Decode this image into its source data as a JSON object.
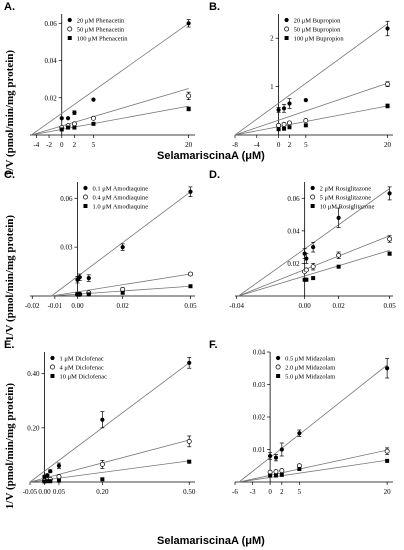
{
  "figure": {
    "ylabel": "1/V (pmol/min/mg protein)",
    "xlabel": "SelamariscinaA (μM)"
  },
  "chart_data": [
    {
      "type": "line",
      "panel": "A.",
      "series": [
        {
          "name": "20 μM Phenacetin",
          "marker": "filled-circle",
          "x": [
            0,
            1,
            2,
            5,
            20
          ],
          "y": [
            0.009,
            0.009,
            0.012,
            0.019,
            0.06
          ],
          "err": [
            0,
            0,
            0.001,
            0,
            0.002
          ]
        },
        {
          "name": "50 μM Phenacetin",
          "marker": "open-circle",
          "x": [
            0,
            1,
            2,
            5,
            20
          ],
          "y": [
            0.004,
            0.005,
            0.006,
            0.009,
            0.021
          ],
          "err": [
            0,
            0,
            0,
            0,
            0.002
          ]
        },
        {
          "name": "100 μM Phenacetin",
          "marker": "filled-square",
          "x": [
            0,
            1,
            2,
            5,
            20
          ],
          "y": [
            0.003,
            0.004,
            0.004,
            0.006,
            0.014
          ],
          "err": [
            0,
            0,
            0,
            0,
            0.001
          ]
        }
      ],
      "lines": [
        [
          -4.8,
          0.0,
          20,
          0.06
        ],
        [
          -4.8,
          0.0,
          20,
          0.025
        ],
        [
          -4.8,
          0.0,
          20,
          0.0155
        ]
      ],
      "xticks": [
        -4,
        -2,
        0,
        2,
        5,
        20
      ],
      "xtick_labels": [
        "-4",
        "-2",
        "0",
        "2",
        "5",
        "20"
      ],
      "yticks": [
        0.02,
        0.04,
        0.06
      ],
      "ytick_labels": [
        "0.02",
        "0.04",
        "0.06"
      ],
      "xlim": [
        -5,
        21
      ],
      "ylim": [
        0,
        0.065
      ]
    },
    {
      "type": "line",
      "panel": "B.",
      "series": [
        {
          "name": "20 μM Bupropion",
          "marker": "filled-circle",
          "x": [
            0,
            1,
            2,
            5,
            20
          ],
          "y": [
            0.52,
            0.55,
            0.65,
            0.72,
            2.2
          ],
          "err": [
            0.05,
            0.08,
            0.1,
            0,
            0.15
          ]
        },
        {
          "name": "50 μM Bupropion",
          "marker": "open-circle",
          "x": [
            0,
            1,
            2,
            5,
            20
          ],
          "y": [
            0.2,
            0.22,
            0.25,
            0.3,
            1.05
          ],
          "err": [
            0,
            0,
            0,
            0,
            0.05
          ]
        },
        {
          "name": "100 μM Bupropion",
          "marker": "filled-square",
          "x": [
            0,
            1,
            2,
            5,
            20
          ],
          "y": [
            0.12,
            0.13,
            0.16,
            0.2,
            0.6
          ],
          "err": [
            0,
            0,
            0,
            0,
            0.04
          ]
        }
      ],
      "lines": [
        [
          -8,
          0.0,
          20,
          2.3
        ],
        [
          -8,
          0.0,
          20,
          1.07
        ],
        [
          -8,
          0.0,
          20,
          0.6
        ]
      ],
      "xticks": [
        -8,
        -4,
        0,
        2,
        5,
        20
      ],
      "xtick_labels": [
        "-8",
        "-4",
        "0",
        "2",
        "5",
        "20"
      ],
      "yticks": [
        1,
        2
      ],
      "ytick_labels": [
        "1",
        "2"
      ],
      "xlim": [
        -8,
        21
      ],
      "ylim": [
        0,
        2.5
      ]
    },
    {
      "type": "line",
      "panel": "C.",
      "series": [
        {
          "name": "0.1 μM Amodiaquine",
          "marker": "filled-circle",
          "x": [
            0,
            0.001,
            0.005,
            0.02,
            0.05
          ],
          "y": [
            0.01,
            0.0115,
            0.011,
            0.03,
            0.064
          ],
          "err": [
            0.002,
            0.002,
            0.002,
            0.002,
            0.003
          ]
        },
        {
          "name": "0.4 μM Amodiaquine",
          "marker": "open-circle",
          "x": [
            0,
            0.001,
            0.005,
            0.02,
            0.05
          ],
          "y": [
            0.001,
            0.001,
            0.002,
            0.004,
            0.0135
          ],
          "err": [
            0,
            0,
            0,
            0.001,
            0.001
          ]
        },
        {
          "name": "1.0 μM Amodiaquine",
          "marker": "filled-square",
          "x": [
            0,
            0.001,
            0.005,
            0.02,
            0.05
          ],
          "y": [
            0.001,
            0.001,
            0.001,
            0.002,
            0.006
          ],
          "err": [
            0,
            0,
            0,
            0,
            0
          ]
        }
      ],
      "lines": [
        [
          -0.0115,
          0.0,
          0.05,
          0.064
        ],
        [
          -0.0115,
          0.0,
          0.05,
          0.0135
        ],
        [
          -0.0115,
          0.0,
          0.05,
          0.006
        ]
      ],
      "xticks": [
        -0.02,
        -0.01,
        0,
        0.02,
        0.05
      ],
      "xtick_labels": [
        "-0.02",
        "-0.01",
        "0.00",
        "0.02",
        "0.05"
      ],
      "yticks": [
        0.03,
        0.06
      ],
      "ytick_labels": [
        "0.03",
        "0.06"
      ],
      "xlim": [
        -0.021,
        0.052
      ],
      "ylim": [
        0,
        0.07
      ]
    },
    {
      "type": "line",
      "panel": "D.",
      "series": [
        {
          "name": "2 μM Rosiglitazone",
          "marker": "filled-circle",
          "x": [
            0,
            0.001,
            0.005,
            0.02,
            0.05
          ],
          "y": [
            0.026,
            0.023,
            0.03,
            0.048,
            0.063
          ],
          "err": [
            0.003,
            0.003,
            0.003,
            0.006,
            0.004
          ]
        },
        {
          "name": "5 μM Rosiglitazone",
          "marker": "open-circle",
          "x": [
            0,
            0.001,
            0.005,
            0.02,
            0.05
          ],
          "y": [
            0.015,
            0.016,
            0.018,
            0.025,
            0.035
          ],
          "err": [
            0,
            0,
            0.002,
            0.002,
            0.002
          ]
        },
        {
          "name": "10 μM Rosiglitazone",
          "marker": "filled-square",
          "x": [
            0,
            0.001,
            0.005,
            0.02,
            0.05
          ],
          "y": [
            0.01,
            0.01,
            0.011,
            0.018,
            0.026
          ],
          "err": [
            0,
            0,
            0,
            0,
            0.001
          ]
        }
      ],
      "lines": [
        [
          -0.039,
          0.0,
          0.05,
          0.066
        ],
        [
          -0.039,
          0.0,
          0.05,
          0.037
        ],
        [
          -0.039,
          0.0,
          0.05,
          0.028
        ]
      ],
      "xticks": [
        -0.04,
        0,
        0.02,
        0.05
      ],
      "xtick_labels": [
        "-0.04",
        "0.00",
        "0.02",
        "0.05"
      ],
      "yticks": [
        0.02,
        0.04,
        0.06
      ],
      "ytick_labels": [
        "0.02",
        "0.04",
        "0.06"
      ],
      "xlim": [
        -0.041,
        0.052
      ],
      "ylim": [
        0,
        0.07
      ]
    },
    {
      "type": "line",
      "panel": "E.",
      "series": [
        {
          "name": "1 μM Diclofenac",
          "marker": "filled-circle",
          "x": [
            0,
            0.01,
            0.02,
            0.05,
            0.2,
            0.5
          ],
          "y": [
            0.02,
            0.025,
            0.04,
            0.06,
            0.23,
            0.44
          ],
          "err": [
            0.005,
            0.005,
            0.005,
            0.01,
            0.03,
            0.02
          ]
        },
        {
          "name": "4 μM Diclofenac",
          "marker": "open-circle",
          "x": [
            0,
            0.01,
            0.02,
            0.05,
            0.2,
            0.5
          ],
          "y": [
            0.005,
            0.008,
            0.01,
            0.02,
            0.065,
            0.15
          ],
          "err": [
            0,
            0,
            0,
            0.005,
            0.015,
            0.02
          ]
        },
        {
          "name": "10 μM Diclofenac",
          "marker": "filled-square",
          "x": [
            0,
            0.01,
            0.02,
            0.05,
            0.2,
            0.5
          ],
          "y": [
            0.002,
            0.003,
            0.003,
            0.005,
            0.01,
            0.075
          ],
          "err": [
            0,
            0,
            0,
            0,
            0,
            0.005
          ]
        }
      ],
      "lines": [
        [
          -0.05,
          0.0,
          0.5,
          0.44
        ],
        [
          -0.05,
          0.0,
          0.5,
          0.155
        ],
        [
          -0.05,
          0.0,
          0.5,
          0.078
        ]
      ],
      "xticks": [
        -0.05,
        0,
        0.05,
        0.2,
        0.5
      ],
      "xtick_labels": [
        "-0.05",
        "0.00",
        "0.05",
        "0.20",
        "0.50"
      ],
      "yticks": [
        0.2,
        0.4
      ],
      "ytick_labels": [
        "0.20",
        "0.40"
      ],
      "xlim": [
        -0.05,
        0.52
      ],
      "ylim": [
        0,
        0.48
      ]
    },
    {
      "type": "line",
      "panel": "F.",
      "series": [
        {
          "name": "0.5 μM Midazolam",
          "marker": "filled-circle",
          "x": [
            0,
            1,
            2,
            5,
            20
          ],
          "y": [
            0.008,
            0.0075,
            0.01,
            0.015,
            0.035
          ],
          "err": [
            0.001,
            0.001,
            0.002,
            0.001,
            0.003
          ]
        },
        {
          "name": "2.0 μM Midazolam",
          "marker": "open-circle",
          "x": [
            0,
            1,
            2,
            5,
            20
          ],
          "y": [
            0.003,
            0.0032,
            0.0035,
            0.005,
            0.0095
          ],
          "err": [
            0,
            0,
            0,
            0,
            0.001
          ]
        },
        {
          "name": "5.0 μM Midazolam",
          "marker": "filled-square",
          "x": [
            0,
            1,
            2,
            5,
            20
          ],
          "y": [
            0.002,
            0.002,
            0.0022,
            0.004,
            0.0065
          ],
          "err": [
            0,
            0,
            0,
            0,
            0
          ]
        }
      ],
      "lines": [
        [
          -5.3,
          0.0,
          20,
          0.036
        ],
        [
          -5.3,
          0.0,
          20,
          0.0098
        ],
        [
          -5.3,
          0.0,
          20,
          0.0067
        ]
      ],
      "xticks": [
        -6,
        -3,
        0,
        2,
        5,
        20
      ],
      "xtick_labels": [
        "-6",
        "-3",
        "0",
        "2",
        "5",
        "20"
      ],
      "yticks": [
        0.01,
        0.02,
        0.03,
        0.04
      ],
      "ytick_labels": [
        "0.01",
        "0.02",
        "0.03",
        "0.04"
      ],
      "xlim": [
        -6,
        21
      ],
      "ylim": [
        0,
        0.04
      ]
    }
  ]
}
